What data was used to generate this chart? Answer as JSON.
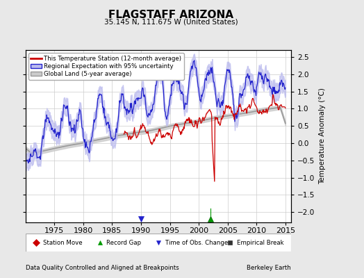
{
  "title": "FLAGSTAFF ARIZONA",
  "subtitle": "35.145 N, 111.675 W (United States)",
  "ylabel": "Temperature Anomaly (°C)",
  "xlabel_left": "Data Quality Controlled and Aligned at Breakpoints",
  "xlabel_right": "Berkeley Earth",
  "ylim": [
    -2.3,
    2.7
  ],
  "xlim": [
    1970,
    2016
  ],
  "yticks": [
    -2,
    -1.5,
    -1,
    -0.5,
    0,
    0.5,
    1,
    1.5,
    2,
    2.5
  ],
  "xticks": [
    1975,
    1980,
    1985,
    1990,
    1995,
    2000,
    2005,
    2010,
    2015
  ],
  "bg_color": "#e8e8e8",
  "plot_bg_color": "#ffffff",
  "grid_color": "#cccccc",
  "red_line_color": "#cc0000",
  "blue_line_color": "#2222cc",
  "blue_fill_color": "#bbbbee",
  "gray_line_color": "#999999",
  "gray_fill_color": "#cccccc",
  "legend_items": [
    "This Temperature Station (12-month average)",
    "Regional Expectation with 95% uncertainty",
    "Global Land (5-year average)"
  ],
  "marker_legend": [
    {
      "label": "Station Move",
      "color": "#cc0000",
      "marker": "D"
    },
    {
      "label": "Record Gap",
      "color": "#009900",
      "marker": "^"
    },
    {
      "label": "Time of Obs. Change",
      "color": "#2222cc",
      "marker": "v"
    },
    {
      "label": "Empirical Break",
      "color": "#333333",
      "marker": "s"
    }
  ],
  "record_gap_x": [
    2002.0
  ],
  "time_obs_x": [
    1990.0
  ],
  "seed": 42
}
